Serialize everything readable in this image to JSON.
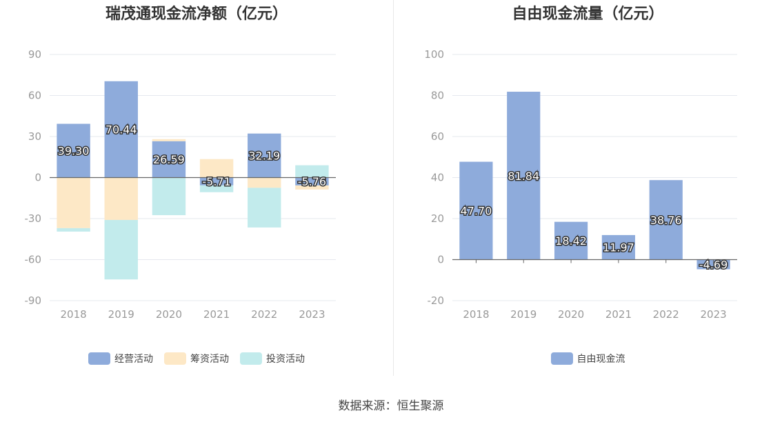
{
  "colors": {
    "operating": "#8eabdb",
    "financing": "#fdd99e",
    "investing": "#86d4d8",
    "grid": "#e5e8ee",
    "axis": "#666666"
  },
  "chart_data": [
    {
      "type": "bar",
      "stacked": true,
      "title": "瑞茂通现金流净额（亿元）",
      "categories": [
        "2018",
        "2019",
        "2020",
        "2021",
        "2022",
        "2023"
      ],
      "yticks": [
        "90",
        "60",
        "30",
        "0",
        "-30",
        "-60",
        "-90"
      ],
      "ylim": [
        -90,
        90
      ],
      "grid": true,
      "legend_position": "bottom",
      "series": [
        {
          "name": "经营活动",
          "color": "#8eabdb",
          "values": [
            39.3,
            70.44,
            26.59,
            -5.71,
            32.19,
            -5.76
          ],
          "labels": [
            "39.30",
            "70.44",
            "26.59",
            "-5.71",
            "32.19",
            "-5.76"
          ]
        },
        {
          "name": "筹资活动",
          "color": "#fde8c6",
          "values": [
            -37.0,
            -31.0,
            1.5,
            13.5,
            -7.5,
            -3.0
          ]
        },
        {
          "name": "投资活动",
          "color": "#c2ebec",
          "values": [
            -2.5,
            -43.5,
            -27.5,
            -5.0,
            -29.0,
            9.0
          ]
        }
      ]
    },
    {
      "type": "bar",
      "title": "自由现金流量（亿元）",
      "categories": [
        "2018",
        "2019",
        "2020",
        "2021",
        "2022",
        "2023"
      ],
      "yticks": [
        "100",
        "80",
        "60",
        "40",
        "20",
        "0",
        "-20"
      ],
      "ylim": [
        -20,
        100
      ],
      "grid": true,
      "legend_position": "bottom",
      "series": [
        {
          "name": "自由现金流",
          "color": "#8eabdb",
          "values": [
            47.7,
            81.84,
            18.42,
            11.97,
            38.76,
            -4.69
          ],
          "labels": [
            "47.70",
            "81.84",
            "18.42",
            "11.97",
            "38.76",
            "-4.69"
          ]
        }
      ]
    }
  ],
  "source": "数据来源：恒生聚源"
}
